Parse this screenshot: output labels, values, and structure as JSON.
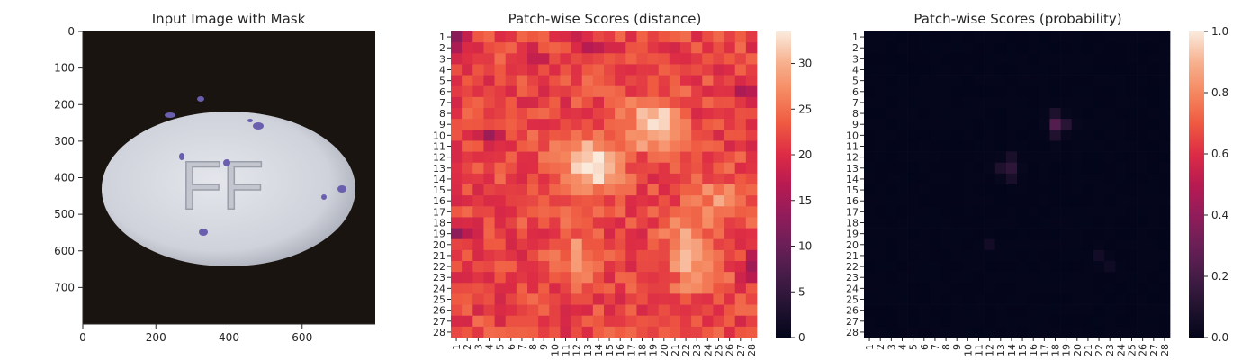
{
  "chart_data": [
    {
      "type": "image",
      "title": "Input Image with Mask",
      "xticks": [
        "0",
        "200",
        "400",
        "600"
      ],
      "yticks": [
        "0",
        "100",
        "200",
        "300",
        "400",
        "500",
        "600",
        "700"
      ],
      "xlim": [
        0,
        800
      ],
      "ylim": [
        800,
        0
      ],
      "image_content": "white oval tablet embossed with letters FF, small purple specks, on dark background",
      "embossed_text": "FF",
      "colors": {
        "background": "#1a1410",
        "tablet": "#d9dbe0",
        "speck": "#6a5fae"
      }
    },
    {
      "type": "heatmap",
      "title": "Patch-wise Scores (distance)",
      "rows": 28,
      "cols": 28,
      "row_labels": [
        "1",
        "2",
        "3",
        "4",
        "5",
        "6",
        "7",
        "8",
        "9",
        "10",
        "11",
        "12",
        "13",
        "14",
        "15",
        "16",
        "17",
        "18",
        "19",
        "20",
        "21",
        "22",
        "23",
        "24",
        "25",
        "26",
        "27",
        "28"
      ],
      "col_labels": [
        "1",
        "2",
        "3",
        "4",
        "5",
        "6",
        "7",
        "8",
        "9",
        "10",
        "11",
        "12",
        "13",
        "14",
        "15",
        "16",
        "17",
        "18",
        "19",
        "20",
        "21",
        "22",
        "23",
        "24",
        "25",
        "26",
        "27",
        "28"
      ],
      "colorbar_ticks": [
        "0",
        "5",
        "10",
        "15",
        "20",
        "25",
        "30"
      ],
      "vmin": 0,
      "vmax": 33.5,
      "colormap": "rocket",
      "base_value": 22,
      "hotspots": [
        {
          "row": 9,
          "col": 19,
          "value": 33
        },
        {
          "row": 13,
          "col": 14,
          "value": 31
        },
        {
          "row": 12,
          "col": 12,
          "value": 28
        },
        {
          "row": 21,
          "col": 12,
          "value": 27
        },
        {
          "row": 22,
          "col": 23,
          "value": 29
        },
        {
          "row": 16,
          "col": 25,
          "value": 27
        },
        {
          "row": 19,
          "col": 22,
          "value": 26
        }
      ],
      "lowspots": [
        {
          "row": 1,
          "col": 1,
          "value": 13
        },
        {
          "row": 2,
          "col": 13,
          "value": 14
        },
        {
          "row": 19,
          "col": 1,
          "value": 15
        },
        {
          "row": 22,
          "col": 28,
          "value": 16
        },
        {
          "row": 10,
          "col": 4,
          "value": 16
        },
        {
          "row": 6,
          "col": 27,
          "value": 16
        },
        {
          "row": 3,
          "col": 8,
          "value": 17
        },
        {
          "row": 9,
          "col": 28,
          "value": 17
        }
      ]
    },
    {
      "type": "heatmap",
      "title": "Patch-wise Scores (probability)",
      "rows": 28,
      "cols": 28,
      "row_labels": [
        "1",
        "2",
        "3",
        "4",
        "5",
        "6",
        "7",
        "8",
        "9",
        "10",
        "11",
        "12",
        "13",
        "14",
        "15",
        "16",
        "17",
        "18",
        "19",
        "20",
        "21",
        "22",
        "23",
        "24",
        "25",
        "26",
        "27",
        "28"
      ],
      "col_labels": [
        "1",
        "2",
        "3",
        "4",
        "5",
        "6",
        "7",
        "8",
        "9",
        "10",
        "11",
        "12",
        "13",
        "14",
        "15",
        "16",
        "17",
        "18",
        "19",
        "20",
        "21",
        "22",
        "23",
        "24",
        "25",
        "26",
        "27",
        "28"
      ],
      "colorbar_ticks": [
        "0.0",
        "0.2",
        "0.4",
        "0.6",
        "0.8",
        "1.0"
      ],
      "vmin": 0,
      "vmax": 1,
      "colormap": "rocket",
      "base_value": 0,
      "hotspots": [
        {
          "row": 9,
          "col": 18,
          "value": 0.22
        },
        {
          "row": 9,
          "col": 19,
          "value": 0.1
        },
        {
          "row": 8,
          "col": 18,
          "value": 0.07
        },
        {
          "row": 10,
          "col": 18,
          "value": 0.08
        },
        {
          "row": 13,
          "col": 14,
          "value": 0.12
        },
        {
          "row": 13,
          "col": 13,
          "value": 0.07
        },
        {
          "row": 12,
          "col": 14,
          "value": 0.06
        },
        {
          "row": 14,
          "col": 14,
          "value": 0.06
        },
        {
          "row": 20,
          "col": 12,
          "value": 0.05
        },
        {
          "row": 21,
          "col": 22,
          "value": 0.05
        },
        {
          "row": 22,
          "col": 23,
          "value": 0.04
        }
      ]
    }
  ]
}
